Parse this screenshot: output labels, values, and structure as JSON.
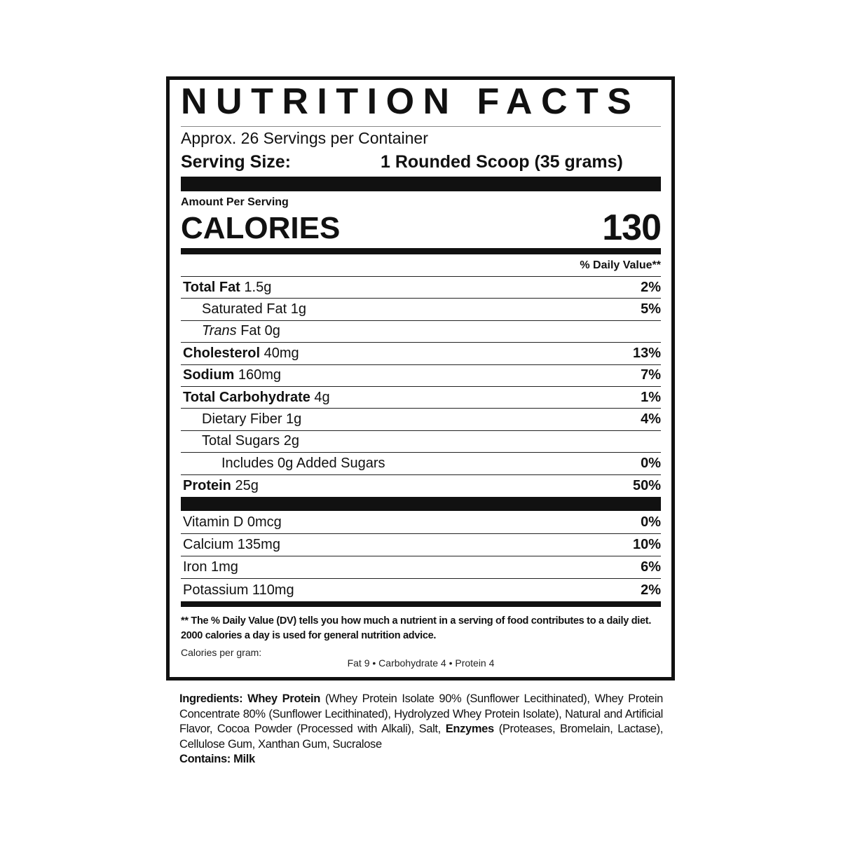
{
  "title": "NUTRITION FACTS",
  "servings_per_container": "Approx. 26 Servings per Container",
  "serving_size": {
    "label": "Serving Size:",
    "value": "1 Rounded Scoop (35 grams)"
  },
  "amount_per_serving": "Amount Per Serving",
  "calories": {
    "label": "CALORIES",
    "value": "130"
  },
  "daily_value_header": "% Daily Value**",
  "nutrients": [
    {
      "bold": "Total Fat",
      "italic": "",
      "text": " 1.5g",
      "dv": "2%",
      "indent": 0
    },
    {
      "bold": "",
      "italic": "",
      "text": "Saturated Fat 1g",
      "dv": "5%",
      "indent": 1
    },
    {
      "bold": "",
      "italic": "Trans",
      "text": " Fat 0g",
      "dv": "",
      "indent": 1
    },
    {
      "bold": "Cholesterol",
      "italic": "",
      "text": " 40mg",
      "dv": "13%",
      "indent": 0
    },
    {
      "bold": "Sodium",
      "italic": "",
      "text": " 160mg",
      "dv": "7%",
      "indent": 0
    },
    {
      "bold": "Total Carbohydrate",
      "italic": "",
      "text": " 4g",
      "dv": "1%",
      "indent": 0
    },
    {
      "bold": "",
      "italic": "",
      "text": "Dietary Fiber 1g",
      "dv": "4%",
      "indent": 1
    },
    {
      "bold": "",
      "italic": "",
      "text": "Total Sugars 2g",
      "dv": "",
      "indent": 1
    },
    {
      "bold": "",
      "italic": "",
      "text": "Includes 0g Added Sugars",
      "dv": "0%",
      "indent": 2
    },
    {
      "bold": "Protein",
      "italic": "",
      "text": " 25g",
      "dv": "50%",
      "indent": 0
    }
  ],
  "vitamins": [
    {
      "text": "Vitamin D 0mcg",
      "dv": "0%"
    },
    {
      "text": "Calcium 135mg",
      "dv": "10%"
    },
    {
      "text": "Iron 1mg",
      "dv": "6%"
    },
    {
      "text": "Potassium 110mg",
      "dv": "2%"
    }
  ],
  "footnote": {
    "line1": "** The % Daily Value (DV) tells you how much a nutrient in a serving of food contributes to a daily diet.",
    "line2": "2000 calories a day is used for general nutrition advice.",
    "calories_per_gram_label": "Calories per gram:",
    "calories_per_gram": "Fat 9 • Carbohydrate 4 • Protein 4"
  },
  "ingredients": {
    "label": "Ingredients:",
    "part1_bold": "Whey Protein",
    "part1": " (Whey Protein Isolate 90% (Sunflower Lecithinated), Whey Protein Concentrate 80% (Sunflower Lecithinated), Hydrolyzed Whey Protein Isolate), Natural and Artificial Flavor, Cocoa Powder (Processed with Alkali), Salt, ",
    "part2_bold": "Enzymes",
    "part2": " (Proteases, Bromelain, Lactase), Cellulose Gum, Xanthan Gum, Sucralose",
    "contains": "Contains: Milk"
  }
}
